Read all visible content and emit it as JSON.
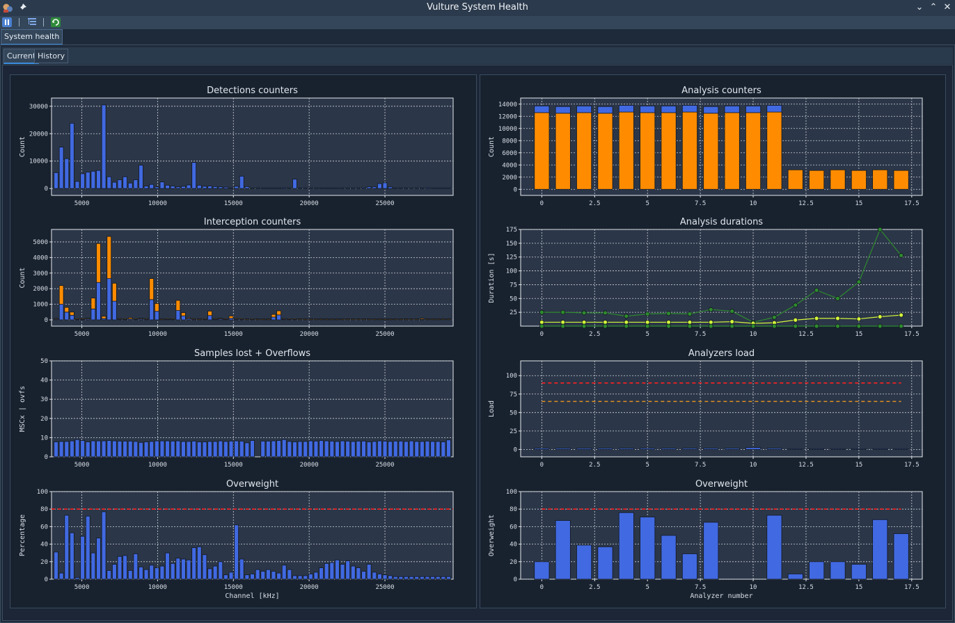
{
  "window": {
    "title": "Vulture System Health"
  },
  "outer_tab": {
    "label": "System health"
  },
  "tabs": [
    {
      "label": "Current",
      "active": true
    },
    {
      "label": "History",
      "active": false
    }
  ],
  "colors": {
    "blue": "#4169e1",
    "orange": "#ff8c00",
    "green": "#2e8b2e",
    "yellow": "#d4f53c",
    "red": "#ff2020",
    "dark_orange": "#e09020",
    "panel": "#2b3648",
    "grid": "#d0d4da"
  },
  "chart_data": [
    {
      "id": "detections",
      "type": "bar",
      "title": "Detections counters",
      "ylabel": "Count",
      "xlim": [
        3000,
        29500
      ],
      "ylim": [
        -2500,
        33000
      ],
      "xticks": [
        5000,
        10000,
        15000,
        20000,
        25000
      ],
      "yticks": [
        0,
        10000,
        20000,
        30000
      ],
      "x": [
        3300,
        3650,
        4000,
        4350,
        4700,
        5050,
        5400,
        5750,
        6100,
        6450,
        6800,
        7150,
        7500,
        7850,
        8200,
        8550,
        8900,
        9250,
        9600,
        9950,
        10300,
        10650,
        11000,
        11350,
        11700,
        12050,
        12400,
        12750,
        13100,
        13450,
        13800,
        14150,
        14500,
        14850,
        15200,
        15550,
        15900,
        16250,
        16600,
        16950,
        17300,
        17650,
        18000,
        18350,
        18700,
        19050,
        19400,
        19750,
        20100,
        20450,
        20800,
        21150,
        21500,
        21850,
        22200,
        22550,
        22900,
        23250,
        23600,
        23950,
        24300,
        24650,
        25000,
        25350,
        25700,
        26050,
        26400,
        26750,
        27100,
        27450,
        27800,
        28150,
        28500,
        28850,
        29200
      ],
      "series": [
        {
          "color_key": "blue",
          "values": [
            5800,
            15100,
            10900,
            23800,
            2600,
            5400,
            6000,
            6300,
            6600,
            30500,
            4300,
            2300,
            3200,
            4300,
            2000,
            3200,
            8500,
            900,
            1500,
            600,
            2400,
            1200,
            900,
            600,
            800,
            1300,
            9500,
            1200,
            800,
            900,
            700,
            600,
            500,
            200,
            800,
            4500,
            700,
            100,
            100,
            100,
            200,
            200,
            100,
            300,
            100,
            3400,
            100,
            100,
            100,
            100,
            200,
            100,
            100,
            100,
            100,
            200,
            100,
            200,
            300,
            600,
            600,
            1800,
            2100,
            600,
            100,
            100,
            100,
            100,
            200,
            100,
            300,
            100,
            100,
            100,
            100
          ]
        }
      ]
    },
    {
      "id": "interception",
      "type": "bar",
      "stacked": true,
      "title": "Interception counters",
      "ylabel": "Count",
      "xlim": [
        3000,
        29500
      ],
      "ylim": [
        -400,
        5800
      ],
      "xticks": [
        5000,
        10000,
        15000,
        20000,
        25000
      ],
      "yticks": [
        0,
        1000,
        2000,
        3000,
        4000,
        5000
      ],
      "x": [
        3300,
        3650,
        4000,
        4350,
        4700,
        5050,
        5400,
        5750,
        6100,
        6450,
        6800,
        7150,
        7500,
        7850,
        8200,
        8550,
        8900,
        9250,
        9600,
        9950,
        10300,
        10650,
        11000,
        11350,
        11700,
        12050,
        12400,
        12750,
        13100,
        13450,
        13800,
        14150,
        14500,
        14850,
        15200,
        15550,
        15900,
        16250,
        16600,
        16950,
        17300,
        17650,
        18000,
        18350,
        18700,
        19050,
        19400,
        19750,
        20100,
        20450,
        20800,
        21150,
        21500,
        21850,
        22200,
        22550,
        22900,
        23250,
        23600,
        23950,
        24300,
        24650,
        25000,
        25350,
        25700,
        26050,
        26400,
        26750,
        27100,
        27450,
        27800,
        28150,
        28500,
        28850,
        29200
      ],
      "series": [
        {
          "color_key": "blue",
          "values": [
            50,
            1000,
            500,
            300,
            30,
            30,
            60,
            700,
            2400,
            80,
            2650,
            1200,
            40,
            30,
            60,
            30,
            60,
            40,
            1300,
            550,
            20,
            30,
            30,
            600,
            260,
            80,
            40,
            20,
            30,
            280,
            40,
            60,
            30,
            100,
            40,
            30,
            20,
            30,
            20,
            20,
            20,
            180,
            320,
            40,
            30,
            30,
            20,
            20,
            20,
            20,
            20,
            20,
            20,
            20,
            20,
            20,
            20,
            20,
            20,
            20,
            20,
            20,
            20,
            20,
            20,
            20,
            20,
            20,
            20,
            40,
            20,
            20,
            20,
            20,
            20
          ]
        },
        {
          "color_key": "orange",
          "values": [
            20,
            1200,
            300,
            200,
            40,
            30,
            30,
            700,
            2500,
            150,
            2700,
            1150,
            30,
            20,
            80,
            30,
            20,
            20,
            1350,
            500,
            20,
            20,
            20,
            650,
            200,
            50,
            20,
            20,
            20,
            280,
            20,
            30,
            20,
            150,
            20,
            20,
            20,
            20,
            20,
            20,
            20,
            170,
            260,
            20,
            20,
            20,
            20,
            20,
            20,
            20,
            20,
            20,
            20,
            20,
            20,
            20,
            20,
            20,
            20,
            20,
            20,
            20,
            20,
            20,
            20,
            20,
            20,
            20,
            20,
            60,
            20,
            20,
            20,
            20,
            20
          ]
        }
      ]
    },
    {
      "id": "samples_lost",
      "type": "bar",
      "title": "Samples lost + Overflows",
      "ylabel": "MSCx | ovfs",
      "xlim": [
        3000,
        29500
      ],
      "ylim": [
        0,
        50
      ],
      "xticks": [
        5000,
        10000,
        15000,
        20000,
        25000
      ],
      "yticks": [
        0,
        10,
        20,
        30,
        40,
        50
      ],
      "x": [
        3300,
        3650,
        4000,
        4350,
        4700,
        5050,
        5400,
        5750,
        6100,
        6450,
        6800,
        7150,
        7500,
        7850,
        8200,
        8550,
        8900,
        9250,
        9600,
        9950,
        10300,
        10650,
        11000,
        11350,
        11700,
        12050,
        12400,
        12750,
        13100,
        13450,
        13800,
        14150,
        14500,
        14850,
        15200,
        15550,
        15900,
        16250,
        16600,
        16950,
        17300,
        17650,
        18000,
        18350,
        18700,
        19050,
        19400,
        19750,
        20100,
        20450,
        20800,
        21150,
        21500,
        21850,
        22200,
        22550,
        22900,
        23250,
        23600,
        23950,
        24300,
        24650,
        25000,
        25350,
        25700,
        26050,
        26400,
        26750,
        27100,
        27450,
        27800,
        28150,
        28500,
        28850,
        29200
      ],
      "series": [
        {
          "color_key": "blue",
          "values": [
            7.8,
            8,
            8,
            8.3,
            9,
            8.5,
            7.8,
            8.3,
            8.3,
            8.3,
            8.5,
            8.3,
            8.2,
            8.2,
            8.2,
            8,
            7.5,
            7.8,
            8,
            8.3,
            8.3,
            8.3,
            8.2,
            8.3,
            8,
            8,
            8.2,
            7.8,
            7.8,
            8,
            8,
            8.3,
            8,
            8.2,
            8.3,
            8.2,
            7.3,
            8.5,
            0,
            8.2,
            8.2,
            8.3,
            8.5,
            9,
            8,
            7.8,
            8,
            8,
            8.3,
            8.2,
            8.5,
            8.3,
            8.2,
            8,
            8.3,
            8.2,
            8,
            8.2,
            8.2,
            7.8,
            8,
            8.3,
            8.2,
            8,
            8.2,
            8.2,
            8,
            8.3,
            8,
            8,
            8.2,
            8,
            8,
            7.8,
            8.8
          ]
        }
      ]
    },
    {
      "id": "overweight_left",
      "type": "bar",
      "title": "Overweight",
      "xlabel": "Channel [kHz]",
      "ylabel": "Percentage",
      "xlim": [
        3000,
        29500
      ],
      "ylim": [
        0,
        100
      ],
      "xticks": [
        5000,
        10000,
        15000,
        20000,
        25000
      ],
      "yticks": [
        0,
        20,
        40,
        60,
        80,
        100
      ],
      "hlines": [
        {
          "y": 80,
          "color_key": "red"
        }
      ],
      "x": [
        3300,
        3650,
        4000,
        4350,
        4700,
        5050,
        5400,
        5750,
        6100,
        6450,
        6800,
        7150,
        7500,
        7850,
        8200,
        8550,
        8900,
        9250,
        9600,
        9950,
        10300,
        10650,
        11000,
        11350,
        11700,
        12050,
        12400,
        12750,
        13100,
        13450,
        13800,
        14150,
        14500,
        14850,
        15200,
        15550,
        15900,
        16250,
        16600,
        16950,
        17300,
        17650,
        18000,
        18350,
        18700,
        19050,
        19400,
        19750,
        20100,
        20450,
        20800,
        21150,
        21500,
        21850,
        22200,
        22550,
        22900,
        23250,
        23600,
        23950,
        24300,
        24650,
        25000,
        25350,
        25700,
        26050,
        26400,
        26750,
        27100,
        27450,
        27800,
        28150,
        28500,
        28850,
        29200
      ],
      "series": [
        {
          "color_key": "blue",
          "values": [
            31,
            7,
            73,
            53,
            2,
            49,
            72,
            30,
            47,
            77,
            10,
            17,
            26,
            27,
            10,
            29,
            14,
            11,
            16,
            13,
            15,
            30,
            18,
            24,
            23,
            22,
            36,
            37,
            28,
            12,
            15,
            20,
            5,
            8,
            62,
            23,
            5,
            6,
            11,
            9,
            11,
            9,
            7,
            16,
            11,
            4,
            4,
            4,
            6,
            8,
            13,
            18,
            19,
            22,
            17,
            21,
            15,
            13,
            9,
            17,
            8,
            6,
            5,
            4,
            3,
            3,
            3,
            3,
            3,
            3,
            3,
            3,
            3,
            3,
            3
          ]
        }
      ]
    },
    {
      "id": "analysis_counters",
      "type": "bar",
      "stacked": true,
      "title": "Analysis counters",
      "ylabel": "Count",
      "xlim": [
        -1,
        18
      ],
      "ylim": [
        -1000,
        15000
      ],
      "xticks": [
        0,
        2.5,
        5,
        7.5,
        10,
        12.5,
        15,
        17.5
      ],
      "xtick_labels": [
        "0",
        "2.5",
        "5",
        "7.5",
        "10",
        "12.5",
        "15",
        "17.5"
      ],
      "yticks": [
        0,
        2000,
        4000,
        6000,
        8000,
        10000,
        12000,
        14000
      ],
      "x": [
        0,
        1,
        2,
        3,
        4,
        5,
        6,
        7,
        8,
        9,
        10,
        11,
        12,
        13,
        14,
        15,
        16,
        17
      ],
      "series": [
        {
          "color_key": "orange",
          "values": [
            12600,
            12500,
            12600,
            12500,
            12700,
            12600,
            12600,
            12700,
            12500,
            12600,
            12600,
            12700,
            3200,
            3100,
            3200,
            3100,
            3200,
            3100
          ]
        },
        {
          "color_key": "blue",
          "values": [
            1100,
            1100,
            1100,
            1100,
            1100,
            1100,
            1100,
            1100,
            1100,
            1100,
            1100,
            1100,
            0,
            0,
            0,
            0,
            0,
            0
          ]
        }
      ]
    },
    {
      "id": "analysis_durations",
      "type": "line",
      "title": "Analysis durations",
      "ylabel": "Duration [s]",
      "xlim": [
        -1,
        18
      ],
      "ylim": [
        0,
        175
      ],
      "xticks": [
        0,
        2.5,
        5,
        7.5,
        10,
        12.5,
        15,
        17.5
      ],
      "xtick_labels": [
        "0",
        "2.5",
        "5",
        "7.5",
        "10",
        "12.5",
        "15",
        "17.5"
      ],
      "yticks": [
        25,
        50,
        75,
        100,
        125,
        150,
        175
      ],
      "x": [
        0,
        1,
        2,
        3,
        4,
        5,
        6,
        7,
        8,
        9,
        10,
        11,
        12,
        13,
        14,
        15,
        16,
        17
      ],
      "series": [
        {
          "color_key": "green",
          "values": [
            25,
            25,
            24,
            24,
            18,
            22,
            23,
            22,
            30,
            27,
            7,
            16,
            38,
            65,
            50,
            80,
            175,
            128
          ]
        },
        {
          "color_key": "yellow",
          "values": [
            7,
            7,
            7,
            7,
            7,
            7,
            7,
            7,
            7,
            8,
            5,
            6,
            11,
            14,
            14,
            13,
            17,
            20
          ]
        },
        {
          "color_key": "green",
          "values": [
            0,
            0,
            0,
            0,
            0,
            0,
            0,
            0,
            0,
            0,
            0,
            0,
            0,
            0,
            0,
            0,
            0,
            0
          ]
        }
      ]
    },
    {
      "id": "analyzers_load",
      "type": "bar",
      "title": "Analyzers load",
      "ylabel": "Load",
      "xlim": [
        -1,
        18
      ],
      "ylim": [
        -10,
        120
      ],
      "xticks": [
        0,
        2.5,
        5,
        7.5,
        10,
        12.5,
        15,
        17.5
      ],
      "xtick_labels": [
        "0",
        "2.5",
        "5",
        "7.5",
        "10",
        "12.5",
        "15",
        "17.5"
      ],
      "yticks": [
        0,
        25,
        50,
        75,
        100
      ],
      "hlines": [
        {
          "y": 90,
          "color_key": "red"
        },
        {
          "y": 65,
          "color_key": "dark_orange"
        }
      ],
      "x": [
        0,
        1,
        2,
        3,
        4,
        5,
        6,
        7,
        8,
        9,
        10,
        11,
        12,
        13,
        14,
        15,
        16,
        17
      ],
      "series": [
        {
          "color_key": "blue",
          "values": [
            1.5,
            1.5,
            1.5,
            1.5,
            1.5,
            1.5,
            1.5,
            1.5,
            1.5,
            1.5,
            2.5,
            1.5,
            0.5,
            0.5,
            0.5,
            0.5,
            0.5,
            0.5
          ]
        }
      ]
    },
    {
      "id": "overweight_right",
      "type": "bar",
      "title": "Overweight",
      "xlabel": "Analyzer number",
      "ylabel": "Overweight",
      "xlim": [
        -1,
        18
      ],
      "ylim": [
        0,
        100
      ],
      "xticks": [
        0,
        2.5,
        5,
        7.5,
        10,
        12.5,
        15,
        17.5
      ],
      "xtick_labels": [
        "0",
        "2.5",
        "5",
        "7.5",
        "10",
        "12.5",
        "15",
        "17.5"
      ],
      "yticks": [
        0,
        20,
        40,
        60,
        80,
        100
      ],
      "hlines": [
        {
          "y": 80,
          "color_key": "red"
        }
      ],
      "x": [
        0,
        1,
        2,
        3,
        4,
        5,
        6,
        7,
        8,
        9,
        10,
        11,
        12,
        13,
        14,
        15,
        16,
        17
      ],
      "series": [
        {
          "color_key": "blue",
          "values": [
            20,
            67,
            39,
            37,
            76,
            71,
            50,
            29,
            65,
            0,
            0,
            73,
            6,
            20,
            20,
            17,
            68,
            52
          ]
        }
      ]
    }
  ]
}
